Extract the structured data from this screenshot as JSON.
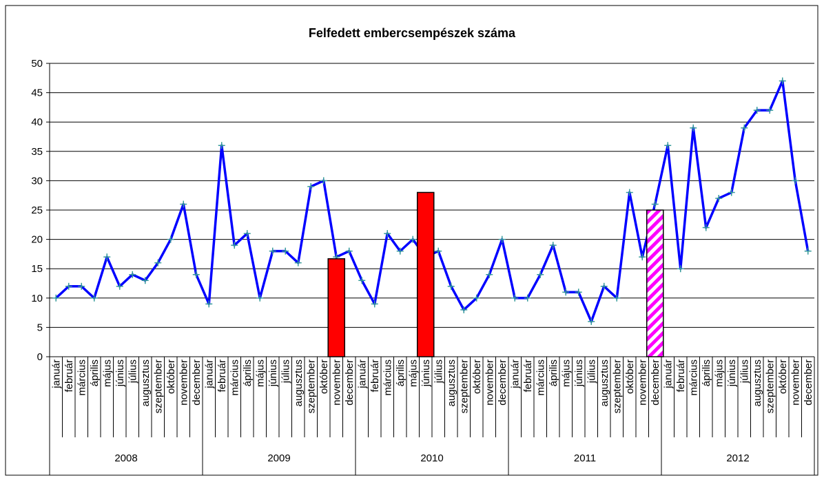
{
  "chart_data": {
    "type": "line",
    "title": "Felfedett embercsempészek száma",
    "categories": [
      "január",
      "február",
      "március",
      "április",
      "május",
      "június",
      "július",
      "augusztus",
      "szeptember",
      "október",
      "november",
      "december",
      "január",
      "február",
      "március",
      "április",
      "május",
      "június",
      "július",
      "augusztus",
      "szeptember",
      "október",
      "november",
      "december",
      "január",
      "február",
      "március",
      "április",
      "május",
      "június",
      "július",
      "augusztus",
      "szeptember",
      "október",
      "november",
      "december",
      "január",
      "február",
      "március",
      "április",
      "május",
      "június",
      "július",
      "augusztus",
      "szeptember",
      "október",
      "november",
      "december",
      "január",
      "február",
      "március",
      "április",
      "május",
      "június",
      "július",
      "augusztus",
      "szeptember",
      "október",
      "november",
      "december"
    ],
    "years": [
      "2008",
      "2009",
      "2010",
      "2011",
      "2012"
    ],
    "series": [
      {
        "type": "line",
        "color": "#0000ff",
        "marker_color": "#339999",
        "values": [
          10,
          12,
          12,
          10,
          17,
          12,
          14,
          13,
          16,
          20,
          26,
          14,
          9,
          36,
          19,
          21,
          10,
          18,
          18,
          16,
          29,
          30,
          17,
          18,
          13,
          9,
          21,
          18,
          20,
          17,
          18,
          12,
          8,
          10,
          14,
          20,
          10,
          10,
          14,
          19,
          11,
          11,
          6,
          12,
          10,
          28,
          17,
          26,
          36,
          15,
          39,
          22,
          27,
          28,
          39,
          42,
          42,
          47,
          30,
          18
        ]
      },
      {
        "type": "bar",
        "color": "#ff0000",
        "values": [
          null,
          null,
          null,
          null,
          null,
          null,
          null,
          null,
          null,
          null,
          null,
          null,
          null,
          null,
          null,
          null,
          null,
          null,
          null,
          null,
          null,
          null,
          16.7,
          null,
          null,
          null,
          null,
          null,
          null,
          28,
          null,
          null,
          null,
          null,
          null,
          null,
          null,
          null,
          null,
          null,
          null,
          null,
          null,
          null,
          null,
          null,
          null,
          null,
          null,
          null,
          null,
          null,
          null,
          null,
          null,
          null,
          null,
          null,
          null,
          null
        ]
      },
      {
        "type": "bar",
        "color": "#ff00ff",
        "pattern": "hatch",
        "values": [
          null,
          null,
          null,
          null,
          null,
          null,
          null,
          null,
          null,
          null,
          null,
          null,
          null,
          null,
          null,
          null,
          null,
          null,
          null,
          null,
          null,
          null,
          null,
          null,
          null,
          null,
          null,
          null,
          null,
          null,
          null,
          null,
          null,
          null,
          null,
          null,
          null,
          null,
          null,
          null,
          null,
          null,
          null,
          null,
          null,
          null,
          null,
          25,
          null,
          null,
          null,
          null,
          null,
          null,
          null,
          null,
          null,
          null,
          null,
          null
        ]
      }
    ],
    "ylim": [
      0,
      50
    ],
    "yticks": [
      0,
      5,
      10,
      15,
      20,
      25,
      30,
      35,
      40,
      45,
      50
    ],
    "grid": true
  }
}
